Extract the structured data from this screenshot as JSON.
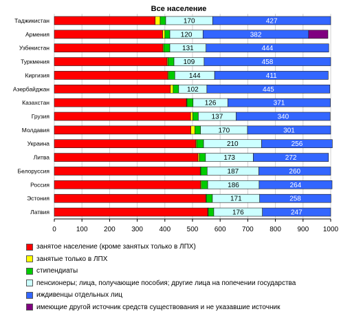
{
  "chart_data": {
    "type": "bar",
    "orientation": "horizontal",
    "stacked": true,
    "title": "Все население",
    "xlim": [
      0,
      1000
    ],
    "xticks": [
      0,
      100,
      200,
      300,
      400,
      500,
      600,
      700,
      800,
      900,
      1000
    ],
    "categories": [
      "Таджикистан",
      "Армения",
      "Узбекистан",
      "Туркмения",
      "Киргизия",
      "Азербайджан",
      "Казахстан",
      "Грузия",
      "Молдавия",
      "Украина",
      "Литва",
      "Белоруссия",
      "Россия",
      "Эстония",
      "Латвия"
    ],
    "series": [
      {
        "name": "занятое население (кроме занятых только в ЛПХ)",
        "color": "#ff0000",
        "values": [
          365,
          392,
          393,
          408,
          410,
          420,
          478,
          493,
          494,
          512,
          520,
          528,
          529,
          548,
          555
        ]
      },
      {
        "name": "занятые только в ЛПХ",
        "color": "#ffff00",
        "values": [
          18,
          8,
          3,
          3,
          3,
          10,
          2,
          8,
          15,
          3,
          5,
          2,
          3,
          2,
          2
        ]
      },
      {
        "name": "стипендиаты",
        "color": "#00cc00",
        "values": [
          20,
          18,
          22,
          22,
          23,
          20,
          22,
          20,
          20,
          25,
          22,
          23,
          23,
          22,
          20
        ]
      },
      {
        "name": "пенсионеры; лица, получающие пособия; другие лица на попечении государства",
        "color": "#ccffff",
        "values": [
          170,
          120,
          131,
          109,
          144,
          102,
          126,
          137,
          170,
          210,
          173,
          187,
          186,
          171,
          176
        ]
      },
      {
        "name": "иждивенцы отдельных лиц",
        "color": "#3366ff",
        "values": [
          427,
          382,
          444,
          458,
          411,
          445,
          371,
          340,
          301,
          256,
          272,
          260,
          264,
          258,
          247
        ]
      },
      {
        "name": "имеющие другой источник средств существования и не указавшие источник",
        "color": "#800080",
        "values": [
          0,
          70,
          0,
          0,
          0,
          0,
          0,
          0,
          0,
          0,
          0,
          0,
          0,
          0,
          0
        ]
      }
    ],
    "data_labels": {
      "series_indices": [
        3,
        4
      ],
      "pensioners": [
        "170",
        "120",
        "131",
        "109",
        "144",
        "102",
        "126",
        "137",
        "170",
        "210",
        "173",
        "187",
        "186",
        "171",
        "176"
      ],
      "dependents": [
        "427",
        "382",
        "444",
        "458",
        "411",
        "445",
        "371",
        "340",
        "301",
        "256",
        "272",
        "260",
        "264",
        "258",
        "247"
      ]
    },
    "legend_position": "bottom"
  }
}
